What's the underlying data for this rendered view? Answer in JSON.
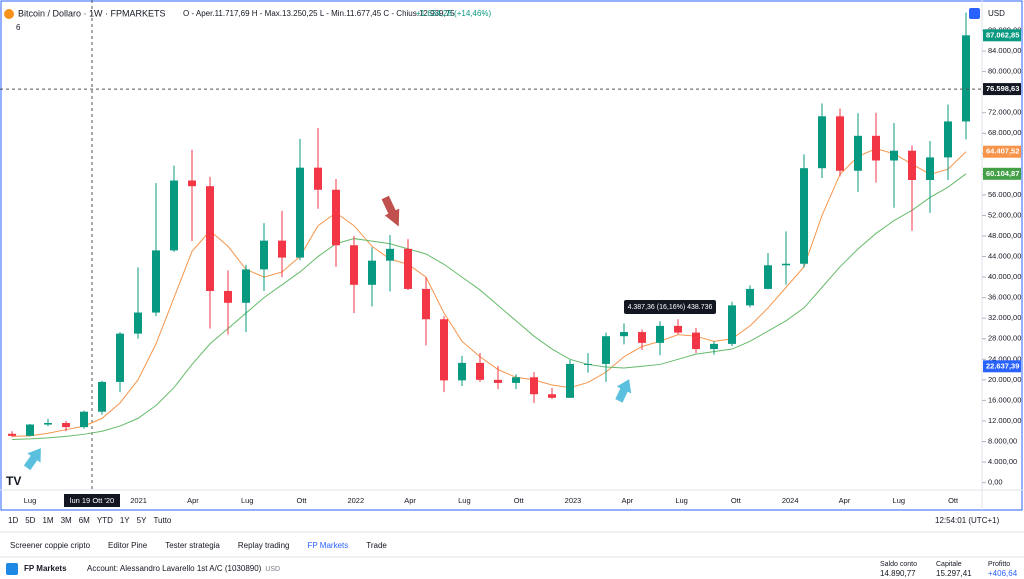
{
  "header": {
    "symbol": "Bitcoin / Dollaro · 1W · FPMARKETS",
    "ohlc": "O - Aper.11.717,69  H - Max.13.250,25  L - Min.11.677,45  C - Chius.12.939,75",
    "change": "+1.634,28 (+14,46%)",
    "indicators": "6",
    "currency": "USD"
  },
  "chart_data": {
    "type": "candlestick",
    "open": [
      9500,
      9100,
      11300,
      11600,
      10800,
      13800,
      19600,
      29000,
      33100,
      45200,
      58800,
      57700,
      37300,
      35000,
      41500,
      47100,
      43800,
      61300,
      57000,
      46200,
      38500,
      43200,
      45500,
      37700,
      31800,
      19900,
      23300,
      20000,
      19400,
      20500,
      17200,
      16500,
      23100,
      23100,
      28500,
      29300,
      27200,
      30500,
      29200,
      26000,
      27000,
      34500,
      37700,
      42300,
      42600,
      61200,
      71300,
      60700,
      67500,
      62700,
      64600,
      58900,
      63300,
      70300
    ],
    "high": [
      10000,
      11400,
      12400,
      12000,
      14000,
      19800,
      29300,
      41900,
      58300,
      61700,
      64800,
      59500,
      41300,
      42400,
      50500,
      52900,
      66900,
      69000,
      59100,
      48000,
      45800,
      48200,
      47400,
      40000,
      32400,
      24700,
      25200,
      22700,
      21100,
      21500,
      18400,
      23900,
      25200,
      29200,
      31000,
      29800,
      31400,
      31800,
      30100,
      27500,
      35200,
      38400,
      44700,
      48900,
      63900,
      73800,
      72800,
      71900,
      72000,
      70000,
      65600,
      66500,
      73600,
      91500
    ],
    "low": [
      8900,
      9000,
      11000,
      10000,
      10500,
      13200,
      17600,
      28000,
      32400,
      44900,
      47000,
      30000,
      28800,
      29300,
      37300,
      40000,
      43300,
      53300,
      42000,
      33000,
      34300,
      37200,
      37500,
      26700,
      17600,
      18800,
      19600,
      18200,
      18200,
      15500,
      16300,
      16500,
      21400,
      19600,
      26900,
      25800,
      24800,
      28900,
      25200,
      24900,
      26600,
      34100,
      37600,
      38500,
      41900,
      59300,
      59600,
      56600,
      58400,
      53500,
      49000,
      52500,
      58900,
      66800
    ],
    "close": [
      9100,
      11300,
      11600,
      10800,
      13800,
      19600,
      29000,
      33100,
      45200,
      58800,
      57700,
      37300,
      35000,
      41500,
      47100,
      43800,
      61300,
      57000,
      46200,
      38500,
      43200,
      45500,
      37700,
      31800,
      19900,
      23300,
      20000,
      19400,
      20500,
      17200,
      16500,
      23100,
      23100,
      28500,
      29300,
      27200,
      30500,
      29200,
      26000,
      27000,
      34500,
      37700,
      42300,
      42600,
      61200,
      71300,
      60700,
      67500,
      62700,
      64600,
      58900,
      63300,
      70300,
      87062.85
    ],
    "up_color": "#089981",
    "down_color": "#f23645",
    "series": [
      {
        "color": "#f7944a",
        "values": [
          9000,
          9100,
          9600,
          10300,
          11000,
          12500,
          15500,
          20000,
          27000,
          36000,
          45000,
          49000,
          46000,
          41500,
          40000,
          41000,
          44000,
          50000,
          52500,
          50000,
          46000,
          43500,
          42500,
          40000,
          33000,
          27500,
          24500,
          22000,
          20500,
          20000,
          19000,
          18500,
          19500,
          21500,
          24500,
          26500,
          27500,
          28800,
          28500,
          27500,
          28000,
          30500,
          34000,
          38000,
          42000,
          52000,
          60000,
          63500,
          65000,
          64000,
          62000,
          60000,
          61000,
          64407.52
        ]
      },
      {
        "color": "#66bb6a",
        "values": [
          8400,
          8500,
          8700,
          9000,
          9400,
          10000,
          11000,
          12500,
          15000,
          18500,
          23000,
          27000,
          30000,
          33000,
          36000,
          38500,
          41000,
          44000,
          46500,
          47500,
          47000,
          46500,
          45500,
          44500,
          42500,
          40000,
          37500,
          34500,
          31500,
          28500,
          26000,
          24000,
          23000,
          22500,
          22300,
          22637,
          23000,
          24000,
          25000,
          25500,
          26000,
          27500,
          29500,
          31500,
          34000,
          38000,
          42000,
          45500,
          48500,
          51000,
          53000,
          55500,
          57500,
          60104.87
        ]
      }
    ],
    "ylim": [
      -1440,
      92380
    ],
    "yticks": [
      {
        "value": 0,
        "label": "0,00"
      },
      {
        "value": 4000,
        "label": "4.000,00"
      },
      {
        "value": 8000,
        "label": "8.000,00"
      },
      {
        "value": 12000,
        "label": "12.000,00"
      },
      {
        "value": 16000,
        "label": "16.000,00"
      },
      {
        "value": 20000,
        "label": "20.000,00"
      },
      {
        "value": 24000,
        "label": "24.000,00"
      },
      {
        "value": 28000,
        "label": "28.000,00"
      },
      {
        "value": 32000,
        "label": "32.000,00"
      },
      {
        "value": 36000,
        "label": "36.000,00"
      },
      {
        "value": 40000,
        "label": "40.000,00"
      },
      {
        "value": 44000,
        "label": "44.000,00"
      },
      {
        "value": 48000,
        "label": "48.000,00"
      },
      {
        "value": 52000,
        "label": "52.000,00"
      },
      {
        "value": 56000,
        "label": "56.000,00"
      },
      {
        "value": 60000,
        "label": "60.000,00"
      },
      {
        "value": 64000,
        "label": "64.000,00"
      },
      {
        "value": 68000,
        "label": "68.000,00"
      },
      {
        "value": 72000,
        "label": "72.000,00"
      },
      {
        "value": 76000,
        "label": "76.000,00"
      },
      {
        "value": 80000,
        "label": "80.000,00"
      },
      {
        "value": 84000,
        "label": "84.000,00"
      },
      {
        "value": 88000,
        "label": "88.000,00"
      }
    ],
    "xlabels": [
      "Lug",
      null,
      "2021",
      "Apr",
      "Lug",
      "Ott",
      "2022",
      "Apr",
      "Lug",
      "Ott",
      "2023",
      "Apr",
      "Lug",
      "Ott",
      "2024",
      "Apr",
      "Lug",
      "Ott"
    ],
    "crosshair_date": "lun 19 Ott '20",
    "price_tags": [
      {
        "value": 87062.85,
        "label": "87.062,85",
        "color": "#089981"
      },
      {
        "value": 76598.63,
        "label": "76.598,63",
        "color": "#131722"
      },
      {
        "value": 64407.52,
        "label": "64.407,52",
        "color": "#f7944a"
      },
      {
        "value": 60104.87,
        "label": "60.104,87",
        "color": "#43a047"
      },
      {
        "value": 22637.39,
        "label": "22.637,39",
        "color": "#2962ff"
      }
    ],
    "annotation": "4.387,36 (16,16%) 438.736"
  },
  "toolbar": {
    "ranges": [
      "1D",
      "5D",
      "1M",
      "3M",
      "6M",
      "YTD",
      "1Y",
      "5Y",
      "Tutto"
    ],
    "time": "12:54:01 (UTC+1)"
  },
  "tabs": [
    "Screener coppie cripto",
    "Editor Pine",
    "Tester strategia",
    "Replay trading",
    "FP Markets",
    "Trade"
  ],
  "account": {
    "broker": "FP Markets",
    "name": "Account: Alessandro Lavarello 1st A/C (1030890)",
    "currency": "USD",
    "stats": [
      {
        "label": "Saldo conto",
        "value": "14.890,77"
      },
      {
        "label": "Capitale",
        "value": "15.297,41"
      },
      {
        "label": "Profitto",
        "value": "+406,64"
      }
    ]
  }
}
